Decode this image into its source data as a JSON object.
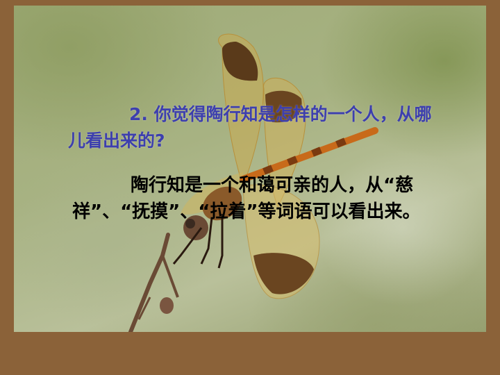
{
  "slide": {
    "question": "2. 你觉得陶行知是怎样的一个人，从哪儿看出来的?",
    "answer": "陶行知是一个和蔼可亲的人，从“慈祥”、“抚摸”、“拉着”等词语可以看出来。"
  },
  "colors": {
    "frame": "#8b6239",
    "question_text": "#3d3fae",
    "answer_text": "#000000"
  },
  "background_image": "dragonfly-photo"
}
